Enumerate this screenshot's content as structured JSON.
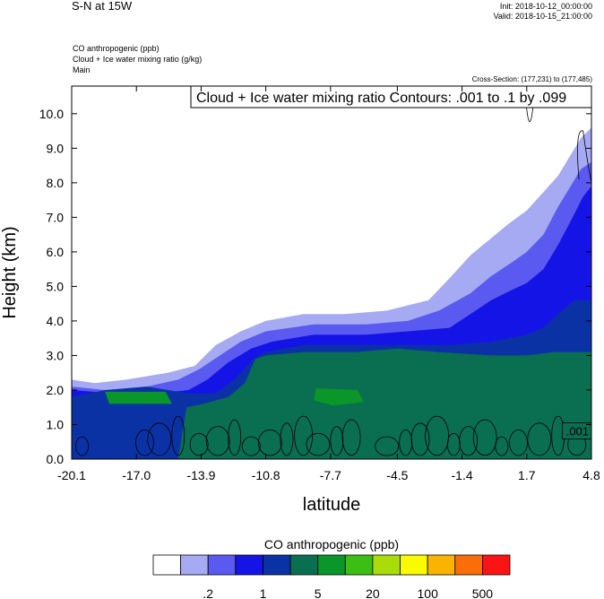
{
  "header": {
    "title": "S-N at 15W",
    "init": "Init: 2018-10-12_00:00:00",
    "valid": "Valid: 2018-10-15_21:00:00",
    "fields": [
      "CO anthropogenic   (ppb)",
      "Cloud + Ice water mixing ratio   (g/kg)",
      "Main"
    ],
    "cross_section": "Cross-Section: (177,231) to (177,485)",
    "contour_note": "Cloud + Ice water mixing ratio Contours: .001 to .1 by .099"
  },
  "chart_data": {
    "type": "area",
    "xlabel": "latitude",
    "ylabel": "Height (km)",
    "xlim": [
      -20.1,
      4.8
    ],
    "ylim": [
      0.0,
      10.8
    ],
    "xticks": [
      "-20.1",
      "-17.0",
      "-13.9",
      "-10.8",
      "-7.7",
      "-4.5",
      "-1.4",
      "1.7",
      "4.8"
    ],
    "xtick_values": [
      -20.1,
      -17.0,
      -13.9,
      -10.8,
      -7.7,
      -4.5,
      -1.4,
      1.7,
      4.8
    ],
    "yticks": [
      "0.0",
      "1.0",
      "2.0",
      "3.0",
      "4.0",
      "5.0",
      "6.0",
      "7.0",
      "8.0",
      "9.0",
      "10.0"
    ],
    "ytick_values": [
      0,
      1,
      2,
      3,
      4,
      5,
      6,
      7,
      8,
      9,
      10
    ],
    "contour_label": ".001",
    "colorbar": {
      "title": "CO anthropogenic  (ppb)",
      "colors": [
        "#ffffff",
        "#a5aaf3",
        "#5a5af0",
        "#1414e6",
        "#0b32a5",
        "#0a6e50",
        "#0a9628",
        "#3cbe14",
        "#aadc0a",
        "#fafa00",
        "#fab400",
        "#fa6e0a",
        "#fa1414"
      ],
      "labels": [
        ".2",
        "1",
        "5",
        "20",
        "100",
        "500"
      ]
    },
    "layers": [
      {
        "name": "light-blue",
        "color": "#a5aaf3",
        "top": [
          [
            -20.1,
            2.3
          ],
          [
            -19.0,
            2.2
          ],
          [
            -17.5,
            2.3
          ],
          [
            -15.5,
            2.5
          ],
          [
            -14.2,
            2.7
          ],
          [
            -13.2,
            3.3
          ],
          [
            -12.0,
            3.7
          ],
          [
            -10.8,
            4.0
          ],
          [
            -9.0,
            4.2
          ],
          [
            -7.0,
            4.2
          ],
          [
            -5.0,
            4.3
          ],
          [
            -3.0,
            4.6
          ],
          [
            -1.9,
            5.3
          ],
          [
            -1.0,
            5.9
          ],
          [
            0.0,
            6.4
          ],
          [
            0.8,
            6.8
          ],
          [
            1.7,
            7.2
          ],
          [
            2.6,
            7.8
          ],
          [
            3.2,
            8.2
          ],
          [
            3.8,
            8.8
          ],
          [
            4.3,
            9.3
          ],
          [
            4.8,
            9.6
          ]
        ]
      },
      {
        "name": "mid-blue",
        "color": "#5a5af0",
        "top": [
          [
            -20.1,
            2.1
          ],
          [
            -18.5,
            2.0
          ],
          [
            -16.5,
            2.1
          ],
          [
            -15.0,
            2.3
          ],
          [
            -14.0,
            2.6
          ],
          [
            -13.0,
            3.0
          ],
          [
            -12.0,
            3.4
          ],
          [
            -10.8,
            3.7
          ],
          [
            -8.5,
            3.9
          ],
          [
            -6.0,
            3.9
          ],
          [
            -4.0,
            4.0
          ],
          [
            -2.5,
            4.3
          ],
          [
            -1.0,
            4.8
          ],
          [
            0.0,
            5.3
          ],
          [
            1.0,
            5.7
          ],
          [
            1.7,
            6.0
          ],
          [
            2.5,
            6.5
          ],
          [
            3.2,
            7.3
          ],
          [
            3.8,
            7.9
          ],
          [
            4.3,
            8.4
          ],
          [
            4.8,
            8.6
          ]
        ]
      },
      {
        "name": "blue",
        "color": "#1414e6",
        "top": [
          [
            -20.1,
            2.0
          ],
          [
            -18.0,
            1.9
          ],
          [
            -16.0,
            1.9
          ],
          [
            -14.5,
            2.0
          ],
          [
            -13.6,
            2.3
          ],
          [
            -12.6,
            2.8
          ],
          [
            -11.5,
            3.2
          ],
          [
            -10.5,
            3.4
          ],
          [
            -8.5,
            3.6
          ],
          [
            -6.0,
            3.6
          ],
          [
            -4.0,
            3.7
          ],
          [
            -2.0,
            3.8
          ],
          [
            -1.0,
            4.2
          ],
          [
            0.0,
            4.6
          ],
          [
            1.0,
            4.9
          ],
          [
            1.7,
            5.1
          ],
          [
            2.5,
            5.5
          ],
          [
            3.2,
            6.2
          ],
          [
            3.9,
            7.0
          ],
          [
            4.4,
            7.6
          ],
          [
            4.8,
            7.9
          ]
        ]
      },
      {
        "name": "dark-blue",
        "color": "#0b32a5",
        "top": [
          [
            -20.1,
            1.8
          ],
          [
            -18.5,
            2.0
          ],
          [
            -16.5,
            2.1
          ],
          [
            -14.5,
            1.9
          ],
          [
            -13.2,
            1.9
          ],
          [
            -12.3,
            2.3
          ],
          [
            -11.4,
            2.9
          ],
          [
            -10.8,
            3.1
          ],
          [
            -9.0,
            3.3
          ],
          [
            -6.5,
            3.3
          ],
          [
            -4.0,
            3.3
          ],
          [
            -2.0,
            3.3
          ],
          [
            0.0,
            3.4
          ],
          [
            1.7,
            3.6
          ],
          [
            2.5,
            3.8
          ],
          [
            3.2,
            4.2
          ],
          [
            4.0,
            4.6
          ],
          [
            4.8,
            4.6
          ]
        ]
      },
      {
        "name": "teal",
        "color": "#0a6e50",
        "top": [
          [
            -19.0,
            0.0
          ],
          [
            -15.0,
            0.0
          ],
          [
            -14.6,
            1.5
          ],
          [
            -13.8,
            1.6
          ],
          [
            -12.6,
            1.8
          ],
          [
            -11.8,
            2.2
          ],
          [
            -11.3,
            2.9
          ],
          [
            -10.8,
            3.0
          ],
          [
            -9.0,
            3.1
          ],
          [
            -6.5,
            3.1
          ],
          [
            -4.5,
            3.2
          ],
          [
            -2.5,
            3.1
          ],
          [
            0.0,
            3.0
          ],
          [
            1.7,
            3.0
          ],
          [
            3.0,
            3.1
          ],
          [
            4.5,
            3.1
          ],
          [
            4.8,
            3.1
          ]
        ]
      }
    ],
    "green_patches": [
      {
        "color": "#0a9628",
        "points": [
          [
            -8.4,
            2.05
          ],
          [
            -6.4,
            2.0
          ],
          [
            -6.1,
            1.65
          ],
          [
            -7.6,
            1.55
          ],
          [
            -8.5,
            1.7
          ]
        ]
      },
      {
        "color": "#0a9628",
        "points": [
          [
            -18.5,
            1.95
          ],
          [
            -15.6,
            1.95
          ],
          [
            -15.3,
            1.6
          ],
          [
            -18.3,
            1.6
          ]
        ]
      }
    ]
  }
}
